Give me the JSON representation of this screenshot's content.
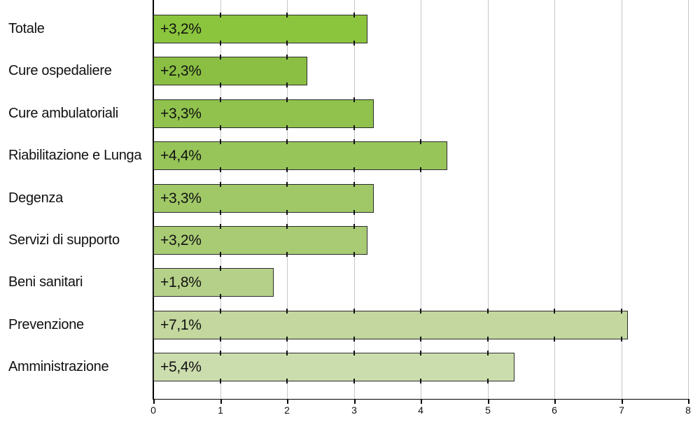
{
  "chart_data": {
    "type": "bar",
    "orientation": "horizontal",
    "title": "",
    "categories": [
      "Totale",
      "Cure ospedaliere",
      "Cure ambulatoriali",
      "Riabilitazione e Lunga",
      "Degenza",
      "Servizi di supporto",
      "Beni sanitari",
      "Prevenzione",
      "Amministrazione"
    ],
    "values": [
      3.2,
      2.3,
      3.3,
      4.4,
      3.3,
      3.2,
      1.8,
      7.1,
      5.4
    ],
    "value_labels": [
      "+3,2%",
      "+2,3%",
      "+3,3%",
      "+4,4%",
      "+3,3%",
      "+3,2%",
      "+1,8%",
      "+7,1%",
      "+5,4%"
    ],
    "bar_colors": [
      "#8bc53d",
      "#8abf44",
      "#90c24d",
      "#98c55a",
      "#a0c867",
      "#a8cb74",
      "#b5d189",
      "#c3d79e",
      "#ccddad"
    ],
    "xlim": [
      0,
      8
    ],
    "x_tick_labels": [
      "0",
      "1",
      "2",
      "3",
      "4",
      "5",
      "6",
      "7",
      "8"
    ],
    "grid": true,
    "legend": false,
    "unit": "%",
    "colors": {
      "axis": "#000000",
      "gridline": "#c6c6c6",
      "bar_border": "#2b2b2b",
      "notch": "#111111",
      "text": "#111111",
      "background": "#ffffff"
    }
  }
}
